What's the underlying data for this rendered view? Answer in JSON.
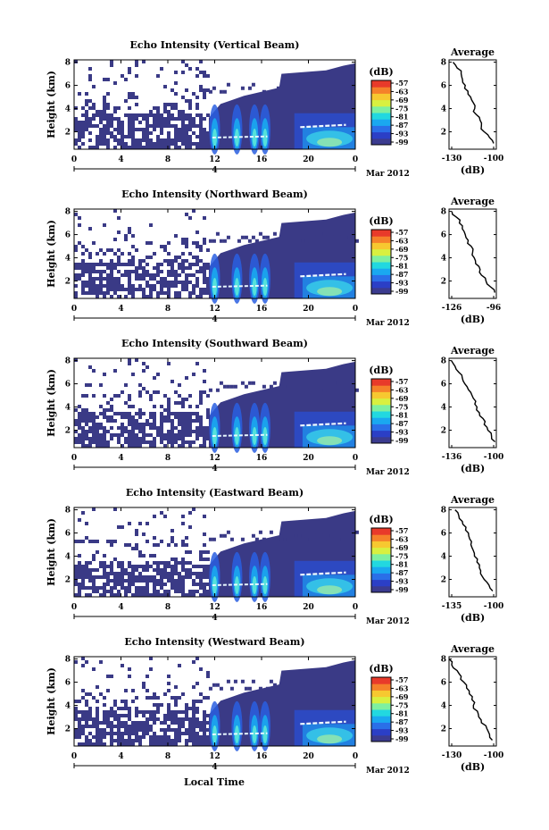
{
  "figure": {
    "time_ticks": [
      "0",
      "4",
      "8",
      "12",
      "16",
      "20",
      "0"
    ],
    "date_label": "4",
    "month_label": "Mar 2012",
    "xlabel": "Local Time",
    "ylabel": "Height (km)",
    "height_ticks": [
      "2",
      "4",
      "6",
      "8"
    ],
    "colorbar_unit": "(dB)",
    "colorbar_ticks": [
      "-57",
      "-63",
      "-69",
      "-75",
      "-81",
      "-87",
      "-93",
      "-99"
    ],
    "colorbar_colors": [
      "#3b3b8f",
      "#2b3fc6",
      "#2a6fe8",
      "#1aa8f0",
      "#22d8e0",
      "#7ef0a0",
      "#d8f040",
      "#f7c830",
      "#f5812a",
      "#e83a2a"
    ],
    "avg_title": "Average",
    "avg_xlabel": "(dB)"
  },
  "chart_data": [
    {
      "type": "heatmap",
      "title": "Echo Intensity (Vertical Beam)",
      "xlabel": "",
      "ylabel": "Height (km)",
      "xlim": [
        0,
        24
      ],
      "ylim": [
        0.5,
        8.2
      ],
      "colorbar": {
        "label": "(dB)",
        "range": [
          -99,
          -57
        ]
      },
      "average_profile": {
        "title": "Average",
        "xlabel": "(dB)",
        "xticks": [
          "-130",
          "-100"
        ],
        "xlim": [
          -130,
          -95
        ],
        "height": [
          1,
          1.5,
          2,
          2.5,
          3,
          3.5,
          4,
          4.5,
          5,
          5.5,
          6,
          6.5,
          7,
          7.5,
          8
        ],
        "values": [
          -97,
          -100,
          -104,
          -106,
          -107,
          -110,
          -111,
          -112,
          -114,
          -116,
          -118,
          -120,
          -121,
          -124,
          -127
        ]
      }
    },
    {
      "type": "heatmap",
      "title": "Echo Intensity (Northward Beam)",
      "xlabel": "",
      "ylabel": "Height (km)",
      "xlim": [
        0,
        24
      ],
      "ylim": [
        0.5,
        8.2
      ],
      "colorbar": {
        "label": "(dB)",
        "range": [
          -99,
          -57
        ]
      },
      "average_profile": {
        "title": "Average",
        "xlabel": "(dB)",
        "xticks": [
          "-126",
          "-96"
        ],
        "xlim": [
          -126,
          -94
        ],
        "height": [
          1,
          1.5,
          2,
          2.5,
          3,
          3.5,
          4,
          4.5,
          5,
          5.5,
          6,
          6.5,
          7,
          7.5,
          8
        ],
        "values": [
          -95,
          -98,
          -101,
          -104,
          -105,
          -108,
          -109,
          -110,
          -111,
          -113,
          -115,
          -117,
          -119,
          -121,
          -124
        ]
      }
    },
    {
      "type": "heatmap",
      "title": "Echo Intensity (Southward Beam)",
      "xlabel": "",
      "ylabel": "Height (km)",
      "xlim": [
        0,
        24
      ],
      "ylim": [
        0.5,
        8.2
      ],
      "colorbar": {
        "label": "(dB)",
        "range": [
          -99,
          -57
        ]
      },
      "average_profile": {
        "title": "Average",
        "xlabel": "(dB)",
        "xticks": [
          "-136",
          "-100"
        ],
        "xlim": [
          -136,
          -97
        ],
        "height": [
          1,
          1.5,
          2,
          2.5,
          3,
          3.5,
          4,
          4.5,
          5,
          5.5,
          6,
          6.5,
          7,
          7.5,
          8
        ],
        "values": [
          -98,
          -101,
          -104,
          -107,
          -108,
          -111,
          -113,
          -114,
          -117,
          -120,
          -123,
          -125,
          -128,
          -131,
          -134
        ]
      }
    },
    {
      "type": "heatmap",
      "title": "Echo Intensity (Eastward Beam)",
      "xlabel": "",
      "ylabel": "Height (km)",
      "xlim": [
        0,
        24
      ],
      "ylim": [
        0.5,
        8.2
      ],
      "colorbar": {
        "label": "(dB)",
        "range": [
          -99,
          -57
        ]
      },
      "average_profile": {
        "title": "Average",
        "xlabel": "(dB)",
        "xticks": [
          "-135",
          "-100"
        ],
        "xlim": [
          -135,
          -96
        ],
        "height": [
          1,
          1.5,
          2,
          2.5,
          3,
          3.5,
          4,
          4.5,
          5,
          5.5,
          6,
          6.5,
          7,
          7.5,
          8
        ],
        "values": [
          -99,
          -102,
          -106,
          -109,
          -110,
          -112,
          -114,
          -115,
          -117,
          -118,
          -119,
          -121,
          -124,
          -127,
          -130
        ]
      }
    },
    {
      "type": "heatmap",
      "title": "Echo Intensity (Westward Beam)",
      "xlabel": "Local Time",
      "ylabel": "Height (km)",
      "xlim": [
        0,
        24
      ],
      "ylim": [
        0.5,
        8.2
      ],
      "colorbar": {
        "label": "(dB)",
        "range": [
          -99,
          -57
        ]
      },
      "average_profile": {
        "title": "Average",
        "xlabel": "(dB)",
        "xticks": [
          "-130",
          "-100"
        ],
        "xlim": [
          -130,
          -95
        ],
        "height": [
          1,
          1.5,
          2,
          2.5,
          3,
          3.5,
          4,
          4.5,
          5,
          5.5,
          6,
          6.5,
          7,
          7.5,
          8
        ],
        "values": [
          -98,
          -100,
          -102,
          -106,
          -108,
          -109,
          -112,
          -113,
          -115,
          -117,
          -119,
          -121,
          -124,
          -128,
          -130
        ]
      }
    }
  ]
}
